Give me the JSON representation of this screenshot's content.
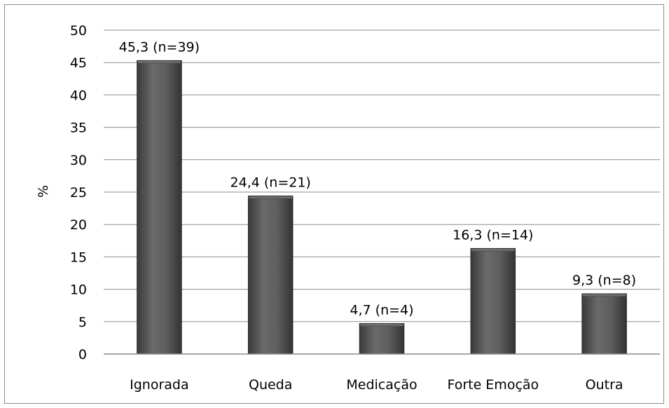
{
  "chart_data": {
    "type": "bar",
    "title": "",
    "xlabel": "",
    "ylabel": "%",
    "ylim": [
      0,
      50
    ],
    "yticks": [
      0,
      5,
      10,
      15,
      20,
      25,
      30,
      35,
      40,
      45,
      50
    ],
    "grid": true,
    "legend": "none",
    "categories": [
      "Ignorada",
      "Queda",
      "Medicação",
      "Forte Emoção",
      "Outra"
    ],
    "values": [
      45.3,
      24.4,
      4.7,
      16.3,
      9.3
    ],
    "data_labels": [
      "45,3 (n=39)",
      "24,4 (n=21)",
      "4,7 (n=4)",
      "16,3 (n=14)",
      "9,3 (n=8)"
    ],
    "bar_color": "#555555",
    "gridline_color": "#8c8c8c"
  }
}
